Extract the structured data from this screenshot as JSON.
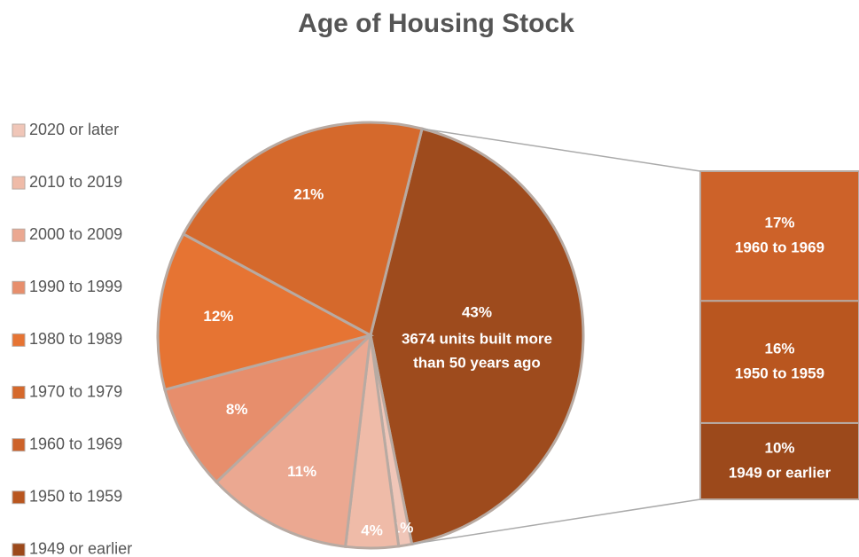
{
  "chart_data": {
    "type": "bar_of_pie",
    "title": "Age of Housing Stock",
    "pie_slices": [
      {
        "name": "2020 or later",
        "value": 1,
        "value_label": "1%",
        "color": "#f0c6b8"
      },
      {
        "name": "2010 to 2019",
        "value": 4,
        "value_label": "4%",
        "color": "#efbba8"
      },
      {
        "name": "2000 to 2009",
        "value": 11,
        "value_label": "11%",
        "color": "#eba891"
      },
      {
        "name": "1990 to 1999",
        "value": 8,
        "value_label": "8%",
        "color": "#e78e6c"
      },
      {
        "name": "1980 to 1989",
        "value": 12,
        "value_label": "12%",
        "color": "#e67433"
      },
      {
        "name": "1970 to 1979",
        "value": 21,
        "value_label": "21%",
        "color": "#d5692c"
      }
    ],
    "bar_segments": [
      {
        "name": "1960 to 1969",
        "value": 17,
        "value_label": "17%",
        "color": "#cd6229"
      },
      {
        "name": "1950 to 1959",
        "value": 16,
        "value_label": "16%",
        "color": "#b9561f"
      },
      {
        "name": "1949 or earlier",
        "value": 10,
        "value_label": "10%",
        "color": "#9c491b"
      }
    ],
    "other_slice": {
      "value": 43,
      "value_label": "43%",
      "label": [
        "3674 units built more",
        "than 50 years ago"
      ],
      "color": "#9e4b1d"
    }
  }
}
